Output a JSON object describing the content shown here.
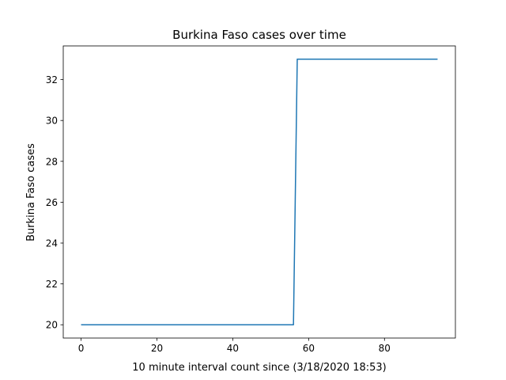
{
  "chart_data": {
    "type": "line",
    "title": "Burkina Faso cases over time",
    "xlabel": "10 minute interval count since (3/18/2020 18:53)",
    "ylabel": "Burkina Faso cases",
    "xlim": [
      -4.7,
      98.7
    ],
    "ylim": [
      19.35,
      33.65
    ],
    "xticks": [
      0,
      20,
      40,
      60,
      80
    ],
    "yticks": [
      20,
      22,
      24,
      26,
      28,
      30,
      32
    ],
    "grid": false,
    "series": [
      {
        "color": "#1f77b4",
        "x": [
          0,
          56,
          57,
          94
        ],
        "y": [
          20,
          20,
          33,
          33
        ]
      }
    ]
  }
}
